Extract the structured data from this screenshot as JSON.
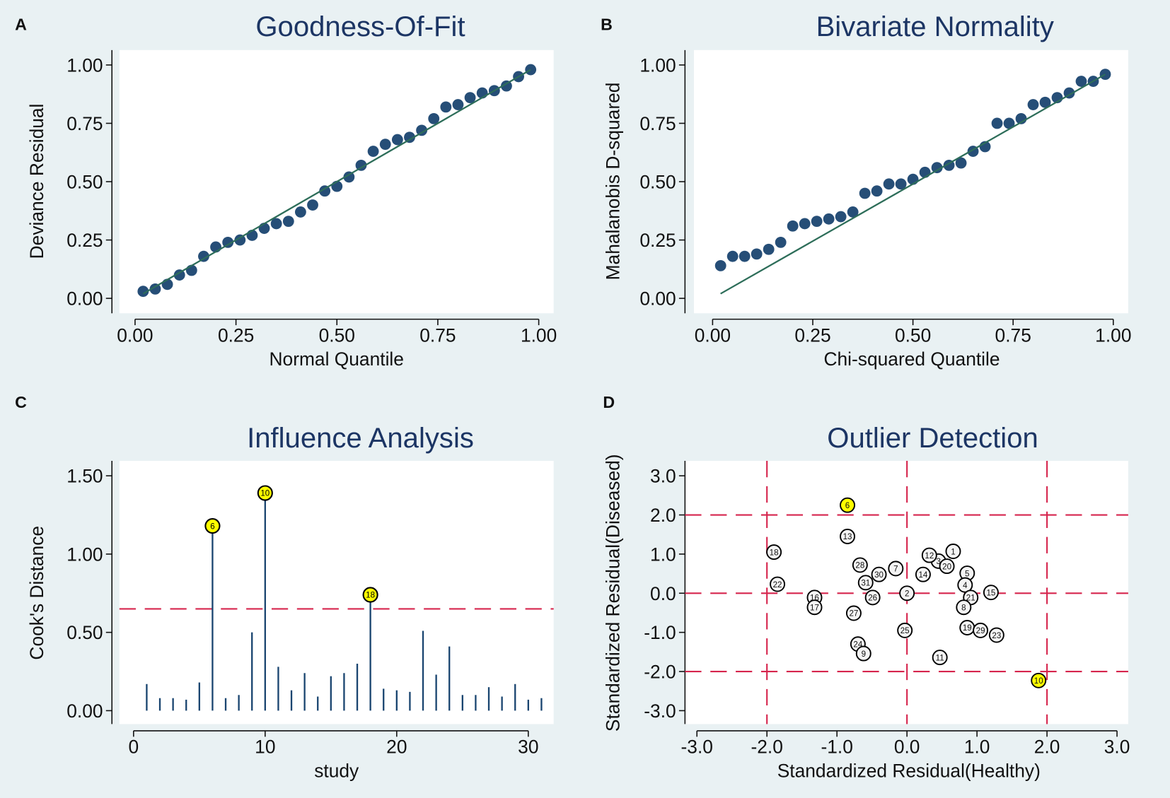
{
  "colors": {
    "background": "#e9f1f3",
    "marker": "#1a4570",
    "fit_line": "#2e6e5a",
    "threshold": "#d6254d",
    "highlight": "#ffff00"
  },
  "chart_data": [
    {
      "panel": "A",
      "type": "scatter",
      "title": "Goodness-Of-Fit",
      "xlabel": "Normal Quantile",
      "ylabel": "Deviance Residual",
      "xlim": [
        0,
        1
      ],
      "ylim": [
        0,
        1
      ],
      "xticks": [
        "0.00",
        "0.25",
        "0.50",
        "0.75",
        "1.00"
      ],
      "yticks": [
        "0.00",
        "0.25",
        "0.50",
        "0.75",
        "1.00"
      ],
      "x": [
        0.02,
        0.05,
        0.08,
        0.11,
        0.14,
        0.17,
        0.2,
        0.23,
        0.26,
        0.29,
        0.32,
        0.35,
        0.38,
        0.41,
        0.44,
        0.47,
        0.5,
        0.53,
        0.56,
        0.59,
        0.62,
        0.65,
        0.68,
        0.71,
        0.74,
        0.77,
        0.8,
        0.83,
        0.86,
        0.89,
        0.92,
        0.95,
        0.98
      ],
      "y": [
        0.03,
        0.04,
        0.06,
        0.1,
        0.12,
        0.18,
        0.22,
        0.24,
        0.25,
        0.27,
        0.3,
        0.32,
        0.33,
        0.37,
        0.4,
        0.46,
        0.48,
        0.52,
        0.57,
        0.63,
        0.66,
        0.68,
        0.69,
        0.72,
        0.77,
        0.82,
        0.83,
        0.86,
        0.88,
        0.89,
        0.91,
        0.95,
        0.98
      ],
      "fit_line": [
        [
          0.02,
          0.02
        ],
        [
          0.98,
          0.98
        ]
      ]
    },
    {
      "panel": "B",
      "type": "scatter",
      "title": "Bivariate Normality",
      "xlabel": "Chi-squared Quantile",
      "ylabel": "Mahalanobis D-squared",
      "xlim": [
        0,
        1
      ],
      "ylim": [
        0,
        1
      ],
      "xticks": [
        "0.00",
        "0.25",
        "0.50",
        "0.75",
        "1.00"
      ],
      "yticks": [
        "0.00",
        "0.25",
        "0.50",
        "0.75",
        "1.00"
      ],
      "x": [
        0.02,
        0.05,
        0.08,
        0.11,
        0.14,
        0.17,
        0.2,
        0.23,
        0.26,
        0.29,
        0.32,
        0.35,
        0.38,
        0.41,
        0.44,
        0.47,
        0.5,
        0.53,
        0.56,
        0.59,
        0.62,
        0.65,
        0.68,
        0.71,
        0.74,
        0.77,
        0.8,
        0.83,
        0.86,
        0.89,
        0.92,
        0.95,
        0.98
      ],
      "y": [
        0.14,
        0.18,
        0.18,
        0.19,
        0.21,
        0.24,
        0.31,
        0.32,
        0.33,
        0.34,
        0.35,
        0.37,
        0.45,
        0.46,
        0.49,
        0.49,
        0.51,
        0.54,
        0.56,
        0.57,
        0.58,
        0.63,
        0.65,
        0.75,
        0.75,
        0.77,
        0.83,
        0.84,
        0.86,
        0.88,
        0.93,
        0.93,
        0.96
      ],
      "fit_line": [
        [
          0.02,
          0.02
        ],
        [
          0.98,
          0.96
        ]
      ]
    },
    {
      "panel": "C",
      "type": "bar",
      "title": "Influence Analysis",
      "xlabel": "study",
      "ylabel": "Cook's Distance",
      "xlim": [
        -0.5,
        31.5
      ],
      "ylim": [
        0,
        1.5
      ],
      "xticks": [
        "0",
        "10",
        "20",
        "30"
      ],
      "yticks": [
        "0.00",
        "0.50",
        "1.00",
        "1.50"
      ],
      "threshold": 0.65,
      "studies": [
        1,
        2,
        3,
        4,
        5,
        6,
        7,
        8,
        9,
        10,
        11,
        12,
        13,
        14,
        15,
        16,
        17,
        18,
        19,
        20,
        21,
        22,
        23,
        24,
        25,
        26,
        27,
        28,
        29,
        30,
        31
      ],
      "values": [
        0.17,
        0.08,
        0.08,
        0.07,
        0.18,
        1.18,
        0.08,
        0.1,
        0.5,
        1.39,
        0.28,
        0.13,
        0.24,
        0.09,
        0.22,
        0.24,
        0.3,
        0.74,
        0.14,
        0.13,
        0.12,
        0.51,
        0.23,
        0.41,
        0.1,
        0.1,
        0.15,
        0.09,
        0.17,
        0.07,
        0.08
      ],
      "labeled": [
        "6",
        "10",
        "18"
      ]
    },
    {
      "panel": "D",
      "type": "scatter",
      "title": "Outlier Detection",
      "xlabel": "Standardized Residual(Healthy)",
      "ylabel": "Standardized Residual(Diseased)",
      "xlim": [
        -3,
        3
      ],
      "ylim": [
        -3,
        3
      ],
      "xticks": [
        "-3.0",
        "-2.0",
        "-1.0",
        "0.0",
        "1.0",
        "2.0",
        "3.0"
      ],
      "yticks": [
        "-3.0",
        "-2.0",
        "-1.0",
        "0.0",
        "1.0",
        "2.0",
        "3.0"
      ],
      "reference_lines_x": [
        -2,
        0,
        2
      ],
      "reference_lines_y": [
        -2,
        0,
        2
      ],
      "points": [
        {
          "label": "6",
          "x": -0.85,
          "y": 2.25,
          "highlight": true
        },
        {
          "label": "13",
          "x": -0.85,
          "y": 1.45
        },
        {
          "label": "18",
          "x": -1.9,
          "y": 1.05
        },
        {
          "label": "22",
          "x": -1.85,
          "y": 0.23
        },
        {
          "label": "16",
          "x": -1.32,
          "y": -0.11
        },
        {
          "label": "17",
          "x": -1.32,
          "y": -0.36
        },
        {
          "label": "28",
          "x": -0.67,
          "y": 0.72
        },
        {
          "label": "31",
          "x": -0.59,
          "y": 0.27
        },
        {
          "label": "30",
          "x": -0.4,
          "y": 0.48
        },
        {
          "label": "26",
          "x": -0.49,
          "y": -0.11
        },
        {
          "label": "27",
          "x": -0.76,
          "y": -0.51
        },
        {
          "label": "7",
          "x": -0.16,
          "y": 0.63
        },
        {
          "label": "24",
          "x": -0.7,
          "y": -1.3
        },
        {
          "label": "9",
          "x": -0.62,
          "y": -1.54
        },
        {
          "label": "25",
          "x": -0.03,
          "y": -0.95
        },
        {
          "label": "2",
          "x": 0.0,
          "y": 0.0
        },
        {
          "label": "3",
          "x": 0.45,
          "y": 0.82
        },
        {
          "label": "12",
          "x": 0.32,
          "y": 0.97
        },
        {
          "label": "20",
          "x": 0.57,
          "y": 0.69
        },
        {
          "label": "1",
          "x": 0.66,
          "y": 1.07
        },
        {
          "label": "14",
          "x": 0.23,
          "y": 0.48
        },
        {
          "label": "5",
          "x": 0.86,
          "y": 0.51
        },
        {
          "label": "4",
          "x": 0.83,
          "y": 0.21
        },
        {
          "label": "21",
          "x": 0.91,
          "y": -0.11
        },
        {
          "label": "8",
          "x": 0.81,
          "y": -0.36
        },
        {
          "label": "15",
          "x": 1.2,
          "y": 0.02
        },
        {
          "label": "19",
          "x": 0.86,
          "y": -0.88
        },
        {
          "label": "29",
          "x": 1.05,
          "y": -0.95
        },
        {
          "label": "23",
          "x": 1.28,
          "y": -1.07
        },
        {
          "label": "11",
          "x": 0.47,
          "y": -1.64
        },
        {
          "label": "10",
          "x": 1.88,
          "y": -2.23,
          "highlight": true
        }
      ]
    }
  ]
}
